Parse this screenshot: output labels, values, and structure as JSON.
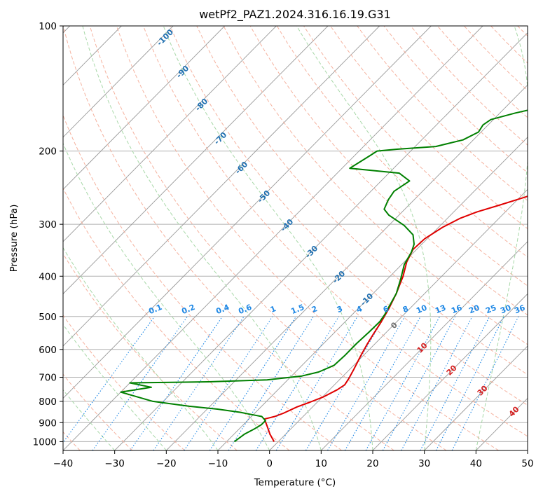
{
  "chart_data": {
    "type": "line",
    "title": "wetPf2_PAZ1.2024.316.16.19.G31",
    "xlabel": "Temperature (°C)",
    "ylabel": "Pressure (hPa)",
    "xlim": [
      -40,
      50
    ],
    "ylim": [
      1050,
      100
    ],
    "y_scale": "log",
    "grid": true,
    "x_ticks": [
      "−40",
      "−30",
      "−20",
      "−10",
      "0",
      "10",
      "20",
      "30",
      "40",
      "50"
    ],
    "x_tick_values": [
      -40,
      -30,
      -20,
      -10,
      0,
      10,
      20,
      30,
      40,
      50
    ],
    "y_ticks": [
      "100",
      "200",
      "300",
      "400",
      "500",
      "600",
      "700",
      "800",
      "900",
      "1000"
    ],
    "y_tick_values": [
      100,
      200,
      300,
      400,
      500,
      600,
      700,
      800,
      900,
      1000
    ],
    "series": [
      {
        "color": "#e00000",
        "kind": "temperature",
        "points": [
          [
            -0.8,
            1000
          ],
          [
            -3,
            960
          ],
          [
            -5,
            920
          ],
          [
            -7,
            882
          ],
          [
            -5.5,
            870
          ],
          [
            -4.5,
            855
          ],
          [
            -3,
            825
          ],
          [
            -1.5,
            805
          ],
          [
            0.2,
            780
          ],
          [
            1.5,
            750
          ],
          [
            2.0,
            730
          ],
          [
            1.6,
            705
          ],
          [
            0.8,
            670
          ],
          [
            -0.5,
            620
          ],
          [
            -1.5,
            580
          ],
          [
            -2.2,
            550
          ],
          [
            -3,
            515
          ],
          [
            -4,
            480
          ],
          [
            -5.5,
            440
          ],
          [
            -7.5,
            400
          ],
          [
            -9.5,
            370
          ],
          [
            -10.7,
            345
          ],
          [
            -10.5,
            325
          ],
          [
            -9.2,
            305
          ],
          [
            -7.5,
            290
          ],
          [
            -5.5,
            280
          ],
          [
            -2.5,
            270
          ],
          [
            1,
            258
          ],
          [
            4.5,
            245
          ],
          [
            8.0,
            232
          ],
          [
            11.5,
            220
          ],
          [
            14.5,
            208
          ],
          [
            17,
            196
          ],
          [
            19.5,
            182
          ],
          [
            22,
            170
          ],
          [
            24.5,
            155
          ],
          [
            26.5,
            140
          ],
          [
            28.5,
            130
          ],
          [
            30.5,
            121
          ],
          [
            33,
            112
          ],
          [
            35,
            105
          ],
          [
            37,
            100
          ]
        ]
      },
      {
        "color": "#008000",
        "kind": "dewpoint",
        "points": [
          [
            -8.5,
            1000
          ],
          [
            -8,
            960
          ],
          [
            -7,
            930
          ],
          [
            -6.5,
            910
          ],
          [
            -6.5,
            890
          ],
          [
            -8,
            870
          ],
          [
            -10,
            862
          ],
          [
            -13,
            850
          ],
          [
            -18,
            835
          ],
          [
            -24,
            822
          ],
          [
            -32,
            800
          ],
          [
            -40,
            760
          ],
          [
            -35,
            740
          ],
          [
            -40,
            722
          ],
          [
            -25,
            718
          ],
          [
            -14,
            710
          ],
          [
            -8,
            695
          ],
          [
            -5.5,
            680
          ],
          [
            -3.8,
            655
          ],
          [
            -3.6,
            620
          ],
          [
            -3.6,
            580
          ],
          [
            -3.4,
            545
          ],
          [
            -3.3,
            515
          ],
          [
            -3.7,
            495
          ],
          [
            -4.5,
            470
          ],
          [
            -5.5,
            440
          ],
          [
            -7.5,
            405
          ],
          [
            -9.5,
            375
          ],
          [
            -10.5,
            350
          ],
          [
            -11.5,
            335
          ],
          [
            -13.5,
            318
          ],
          [
            -17,
            302
          ],
          [
            -22,
            285
          ],
          [
            -24,
            276
          ],
          [
            -25,
            262
          ],
          [
            -25.5,
            250
          ],
          [
            -24.5,
            236
          ],
          [
            -28,
            226
          ],
          [
            -35,
            222
          ],
          [
            -38.5,
            220
          ],
          [
            -37,
            205
          ],
          [
            -36.5,
            200
          ],
          [
            -33,
            198
          ],
          [
            -26,
            195
          ],
          [
            -22,
            188
          ],
          [
            -20.5,
            180
          ],
          [
            -21,
            173
          ],
          [
            -20.5,
            168
          ],
          [
            -17,
            162
          ],
          [
            -12.5,
            156
          ],
          [
            -10,
            150
          ],
          [
            -8,
            144
          ],
          [
            -7.5,
            139
          ],
          [
            -7.7,
            133
          ],
          [
            -8.5,
            127
          ],
          [
            -8.6,
            121
          ],
          [
            -8,
            117
          ],
          [
            -6.5,
            113
          ],
          [
            -5,
            109
          ],
          [
            -4,
            104
          ],
          [
            -3.5,
            100
          ]
        ]
      }
    ],
    "dry_adiabat_labels": [
      "-100",
      "-90",
      "-80",
      "-70",
      "-60",
      "-50",
      "-40",
      "-30",
      "-20",
      "-10",
      "0",
      "10",
      "20",
      "30",
      "40"
    ],
    "mixing_ratio_labels": [
      "0.1",
      "0.2",
      "0.4",
      "0.6",
      "1",
      "1.5",
      "2",
      "3",
      "4",
      "6",
      "8",
      "10",
      "13",
      "16",
      "20",
      "25",
      "30",
      "36"
    ],
    "colors": {
      "isotherm": "#9a9a9a",
      "dry_adiabat": "#f5b29f",
      "moist_adiabat": "#a8d8a8",
      "mixing_ratio": "#1f88e5",
      "cold_label": "#1f6fb0",
      "warm_label": "#d62020",
      "zero_label": "#707070",
      "boundary": "#e0c9a6"
    }
  }
}
